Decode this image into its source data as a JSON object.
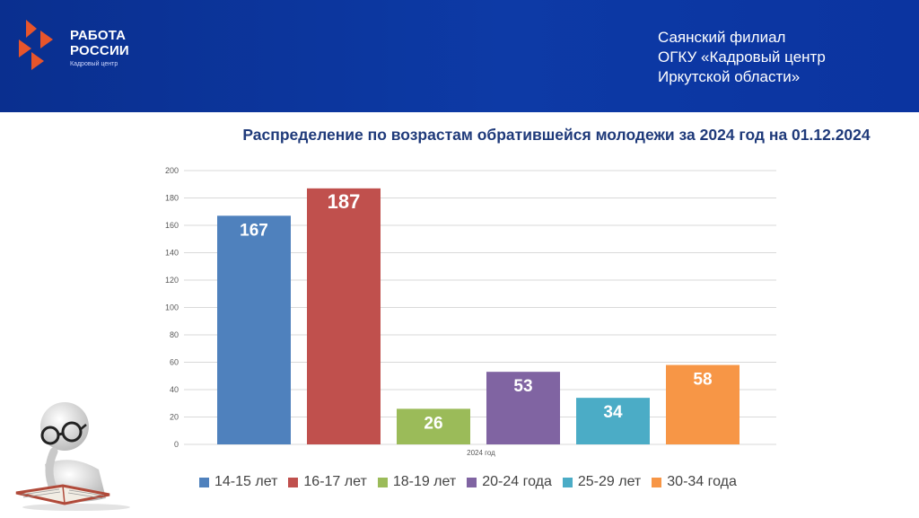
{
  "header": {
    "logo_title_line1": "РАБОТА",
    "logo_title_line2": "РОССИИ",
    "logo_subtitle": "Кадровый центр",
    "branch_line1": "Саянский филиал",
    "branch_line2": "ОГКУ «Кадровый центр",
    "branch_line3": "Иркутской области»",
    "colors": {
      "background": "#0d3aa6",
      "logo_accent": "#e8552b"
    }
  },
  "icons": {
    "logo": "rabota-rossii-arrows-icon",
    "reader": "reader-figure-icon"
  },
  "chart_data": {
    "type": "bar",
    "title": "Распределение по возрастам обратившейся молодежи за 2024 год  на 01.12.2024",
    "categories": [
      "2024 год"
    ],
    "series": [
      {
        "name": "14-15 лет",
        "values": [
          167
        ],
        "color": "#4f81bd"
      },
      {
        "name": "16-17 лет",
        "values": [
          187
        ],
        "color": "#c0504d"
      },
      {
        "name": "18-19 лет",
        "values": [
          26
        ],
        "color": "#9bbb59"
      },
      {
        "name": "20-24 года",
        "values": [
          53
        ],
        "color": "#8064a2"
      },
      {
        "name": "25-29 лет",
        "values": [
          34
        ],
        "color": "#4bacc6"
      },
      {
        "name": "30-34 года",
        "values": [
          58
        ],
        "color": "#f79646"
      }
    ],
    "yticks": [
      "0",
      "20",
      "40",
      "60",
      "80",
      "100",
      "120",
      "140",
      "160",
      "180",
      "200"
    ],
    "ylim": [
      0,
      200
    ],
    "grid": true,
    "legend_position": "bottom"
  }
}
